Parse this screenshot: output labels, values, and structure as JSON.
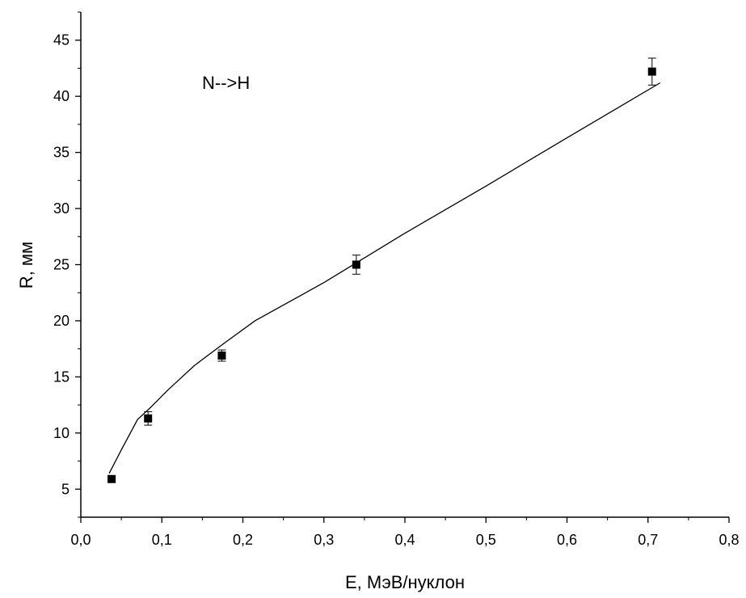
{
  "chart_data": {
    "type": "scatter",
    "title": "",
    "xlabel": "E, МэВ/нуклон",
    "ylabel": "R, мм",
    "xlim": [
      0,
      0.8
    ],
    "ylim": [
      2.5,
      47.5
    ],
    "grid": false,
    "x_ticks": [
      {
        "value": 0.0,
        "label": "0,0"
      },
      {
        "value": 0.1,
        "label": "0,1"
      },
      {
        "value": 0.2,
        "label": "0,2"
      },
      {
        "value": 0.3,
        "label": "0,3"
      },
      {
        "value": 0.4,
        "label": "0,4"
      },
      {
        "value": 0.5,
        "label": "0,5"
      },
      {
        "value": 0.6,
        "label": "0,6"
      },
      {
        "value": 0.7,
        "label": "0,7"
      },
      {
        "value": 0.8,
        "label": "0,8"
      }
    ],
    "y_ticks": [
      {
        "value": 5,
        "label": "5"
      },
      {
        "value": 10,
        "label": "10"
      },
      {
        "value": 15,
        "label": "15"
      },
      {
        "value": 20,
        "label": "20"
      },
      {
        "value": 25,
        "label": "25"
      },
      {
        "value": 30,
        "label": "30"
      },
      {
        "value": 35,
        "label": "35"
      },
      {
        "value": 40,
        "label": "40"
      },
      {
        "value": 45,
        "label": "45"
      }
    ],
    "annotation": "N-->H",
    "series": [
      {
        "kind": "points",
        "x": [
          0.038,
          0.083,
          0.174,
          0.34,
          0.705
        ],
        "y": [
          5.9,
          11.3,
          16.9,
          25.0,
          42.2
        ],
        "yerr": [
          0.25,
          0.6,
          0.5,
          0.85,
          1.2
        ],
        "color": "#000000"
      },
      {
        "kind": "line",
        "x": [
          0.035,
          0.05,
          0.07,
          0.085,
          0.107,
          0.14,
          0.175,
          0.215,
          0.3,
          0.4,
          0.5,
          0.6,
          0.715
        ],
        "y": [
          6.4,
          8.5,
          11.2,
          12.2,
          13.8,
          16.0,
          17.9,
          20.0,
          23.4,
          27.8,
          32.0,
          36.3,
          41.2
        ],
        "color": "#000000"
      }
    ]
  }
}
